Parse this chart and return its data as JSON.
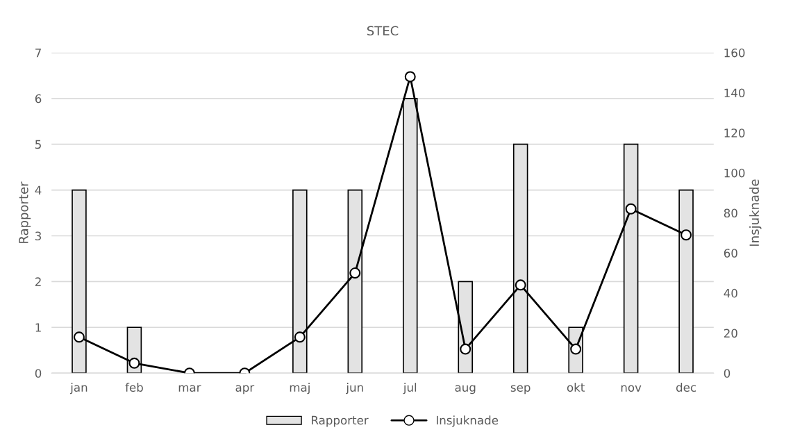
{
  "chart_data": {
    "type": "bar",
    "title": "STEC",
    "ylabel": "Rapporter",
    "y2label": "Insjuknade",
    "categories": [
      "jan",
      "feb",
      "mar",
      "apr",
      "maj",
      "jun",
      "jul",
      "aug",
      "sep",
      "okt",
      "nov",
      "dec"
    ],
    "series": [
      {
        "name": "Rapporter",
        "color": "#e3e3e3",
        "values": [
          4,
          1,
          0,
          0,
          4,
          4,
          6,
          2,
          5,
          1,
          5,
          4
        ]
      },
      {
        "name": "Insjuknade",
        "type": "line",
        "axis": "y2",
        "color": "#000000",
        "marker": "circle",
        "line_style": "solid",
        "values": [
          18,
          5,
          0,
          0,
          18,
          50,
          148,
          12,
          44,
          12,
          82,
          69
        ]
      }
    ],
    "ylim": [
      0,
      7
    ],
    "yticks": [
      0,
      1,
      2,
      3,
      4,
      5,
      6,
      7
    ],
    "y2lim": [
      0,
      160
    ],
    "y2ticks": [
      0,
      20,
      40,
      60,
      80,
      100,
      120,
      140,
      160
    ],
    "grid": "y",
    "legend": "bottom"
  }
}
